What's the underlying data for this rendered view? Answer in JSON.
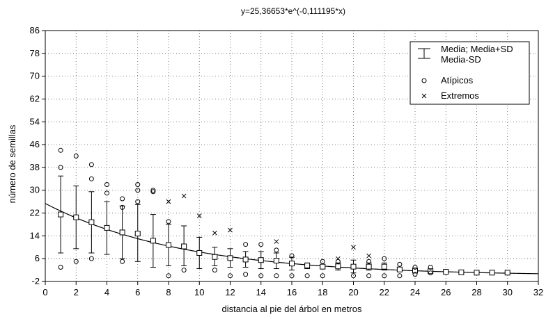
{
  "chart_data": {
    "type": "scatter",
    "title": "y=25,36653*e^(-0,111195*x)",
    "xlabel": "distancia al pie del árbol en metros",
    "ylabel": "número de semillas",
    "xlim": [
      0,
      32
    ],
    "ylim": [
      -2,
      86
    ],
    "x_ticks": [
      0,
      2,
      4,
      6,
      8,
      10,
      12,
      14,
      16,
      18,
      20,
      22,
      24,
      26,
      28,
      30,
      32
    ],
    "x_tick_labels": [
      "0",
      "2",
      "4",
      "6",
      "8",
      "10",
      "12",
      "14",
      "16",
      "18",
      "20",
      "22",
      "24",
      "26",
      "28",
      "30",
      "32"
    ],
    "y_ticks": [
      -2,
      6,
      14,
      22,
      30,
      38,
      46,
      54,
      62,
      70,
      78,
      86
    ],
    "y_tick_labels": [
      "-2",
      "6",
      "14",
      "22",
      "30",
      "38",
      "46",
      "54",
      "62",
      "70",
      "78",
      "86"
    ],
    "grid": true,
    "legend_position": "top-right",
    "legend": [
      {
        "marker": "errorbar",
        "label_lines": [
          "Media; Media+SD",
          "Media-SD"
        ]
      },
      {
        "marker": "circle",
        "label_lines": [
          "Atípicos"
        ]
      },
      {
        "marker": "cross",
        "label_lines": [
          "Extremos"
        ]
      }
    ],
    "curve": {
      "a": 25.36653,
      "b": -0.111195,
      "x_range": [
        0,
        32
      ]
    },
    "means": [
      {
        "x": 1,
        "mean": 21.5,
        "sd_low": 8,
        "sd_high": 35
      },
      {
        "x": 2,
        "mean": 20.5,
        "sd_low": 9.5,
        "sd_high": 31.5
      },
      {
        "x": 3,
        "mean": 18.8,
        "sd_low": 8,
        "sd_high": 29.5
      },
      {
        "x": 4,
        "mean": 16.8,
        "sd_low": 7.5,
        "sd_high": 26
      },
      {
        "x": 5,
        "mean": 15.2,
        "sd_low": 6,
        "sd_high": 24.5
      },
      {
        "x": 6,
        "mean": 14.8,
        "sd_low": 5,
        "sd_high": 25
      },
      {
        "x": 7,
        "mean": 12.3,
        "sd_low": 3,
        "sd_high": 21.5
      },
      {
        "x": 8,
        "mean": 10.8,
        "sd_low": 3.5,
        "sd_high": 18
      },
      {
        "x": 9,
        "mean": 10.3,
        "sd_low": 3.5,
        "sd_high": 17.5
      },
      {
        "x": 10,
        "mean": 8,
        "sd_low": 2.5,
        "sd_high": 13.5
      },
      {
        "x": 11,
        "mean": 6.6,
        "sd_low": 3.5,
        "sd_high": 10
      },
      {
        "x": 12,
        "mean": 6.2,
        "sd_low": 3,
        "sd_high": 9.5
      },
      {
        "x": 13,
        "mean": 5.7,
        "sd_low": 3,
        "sd_high": 8.5
      },
      {
        "x": 14,
        "mean": 5.5,
        "sd_low": 2.5,
        "sd_high": 8.5
      },
      {
        "x": 15,
        "mean": 5.3,
        "sd_low": 2.5,
        "sd_high": 8
      },
      {
        "x": 16,
        "mean": 4.3,
        "sd_low": 2,
        "sd_high": 6.5
      },
      {
        "x": 17,
        "mean": 3.6,
        "sd_low": 2.5,
        "sd_high": 4.5
      },
      {
        "x": 18,
        "mean": 3.2,
        "sd_low": 2.5,
        "sd_high": 4
      },
      {
        "x": 19,
        "mean": 3.3,
        "sd_low": 2,
        "sd_high": 4.5
      },
      {
        "x": 20,
        "mean": 3.2,
        "sd_low": 1,
        "sd_high": 5.5
      },
      {
        "x": 21,
        "mean": 3.2,
        "sd_low": 2,
        "sd_high": 4.5
      },
      {
        "x": 22,
        "mean": 3.2,
        "sd_low": 2,
        "sd_high": 4.5
      },
      {
        "x": 23,
        "mean": 2.2,
        "sd_low": 1.5,
        "sd_high": 3
      },
      {
        "x": 24,
        "mean": 1.8,
        "sd_low": 1.3,
        "sd_high": 2.3
      },
      {
        "x": 25,
        "mean": 1.6,
        "sd_low": 1.2,
        "sd_high": 2
      },
      {
        "x": 26,
        "mean": 1.4,
        "sd_low": 1.2,
        "sd_high": 1.6
      },
      {
        "x": 27,
        "mean": 1.2,
        "sd_low": 1.1,
        "sd_high": 1.3
      },
      {
        "x": 28,
        "mean": 1.1,
        "sd_low": 1,
        "sd_high": 1.2
      },
      {
        "x": 29,
        "mean": 1.1,
        "sd_low": 1,
        "sd_high": 1.2
      },
      {
        "x": 30,
        "mean": 1.1,
        "sd_low": 1,
        "sd_high": 1.2
      }
    ],
    "outliers": [
      {
        "x": 1,
        "y": 44
      },
      {
        "x": 1,
        "y": 38
      },
      {
        "x": 1,
        "y": 3
      },
      {
        "x": 2,
        "y": 42
      },
      {
        "x": 2,
        "y": 5
      },
      {
        "x": 3,
        "y": 39
      },
      {
        "x": 3,
        "y": 34
      },
      {
        "x": 3,
        "y": 6
      },
      {
        "x": 4,
        "y": 32
      },
      {
        "x": 4,
        "y": 29
      },
      {
        "x": 5,
        "y": 27
      },
      {
        "x": 5,
        "y": 24
      },
      {
        "x": 5,
        "y": 5
      },
      {
        "x": 6,
        "y": 32
      },
      {
        "x": 6,
        "y": 30
      },
      {
        "x": 6,
        "y": 26
      },
      {
        "x": 7,
        "y": 30
      },
      {
        "x": 7,
        "y": 29.5
      },
      {
        "x": 8,
        "y": 19
      },
      {
        "x": 8,
        "y": 0
      },
      {
        "x": 9,
        "y": 2
      },
      {
        "x": 11,
        "y": 2
      },
      {
        "x": 12,
        "y": 0
      },
      {
        "x": 13,
        "y": 11
      },
      {
        "x": 13,
        "y": 0.5
      },
      {
        "x": 14,
        "y": 11
      },
      {
        "x": 14,
        "y": 0
      },
      {
        "x": 15,
        "y": 9
      },
      {
        "x": 15,
        "y": 0
      },
      {
        "x": 16,
        "y": 7
      },
      {
        "x": 16,
        "y": 0
      },
      {
        "x": 17,
        "y": 0
      },
      {
        "x": 18,
        "y": 5
      },
      {
        "x": 18,
        "y": 0
      },
      {
        "x": 19,
        "y": 5
      },
      {
        "x": 20,
        "y": 0
      },
      {
        "x": 21,
        "y": 5
      },
      {
        "x": 21,
        "y": 0
      },
      {
        "x": 22,
        "y": 6
      },
      {
        "x": 22,
        "y": 0
      },
      {
        "x": 23,
        "y": 4
      },
      {
        "x": 23,
        "y": 0
      },
      {
        "x": 24,
        "y": 3
      },
      {
        "x": 24,
        "y": 0.5
      },
      {
        "x": 25,
        "y": 3
      },
      {
        "x": 25,
        "y": 1
      }
    ],
    "extremes": [
      {
        "x": 8,
        "y": 26
      },
      {
        "x": 9,
        "y": 28
      },
      {
        "x": 10,
        "y": 21
      },
      {
        "x": 11,
        "y": 15
      },
      {
        "x": 12,
        "y": 16
      },
      {
        "x": 15,
        "y": 12
      },
      {
        "x": 19,
        "y": 6
      },
      {
        "x": 20,
        "y": 10
      },
      {
        "x": 21,
        "y": 7
      }
    ]
  }
}
